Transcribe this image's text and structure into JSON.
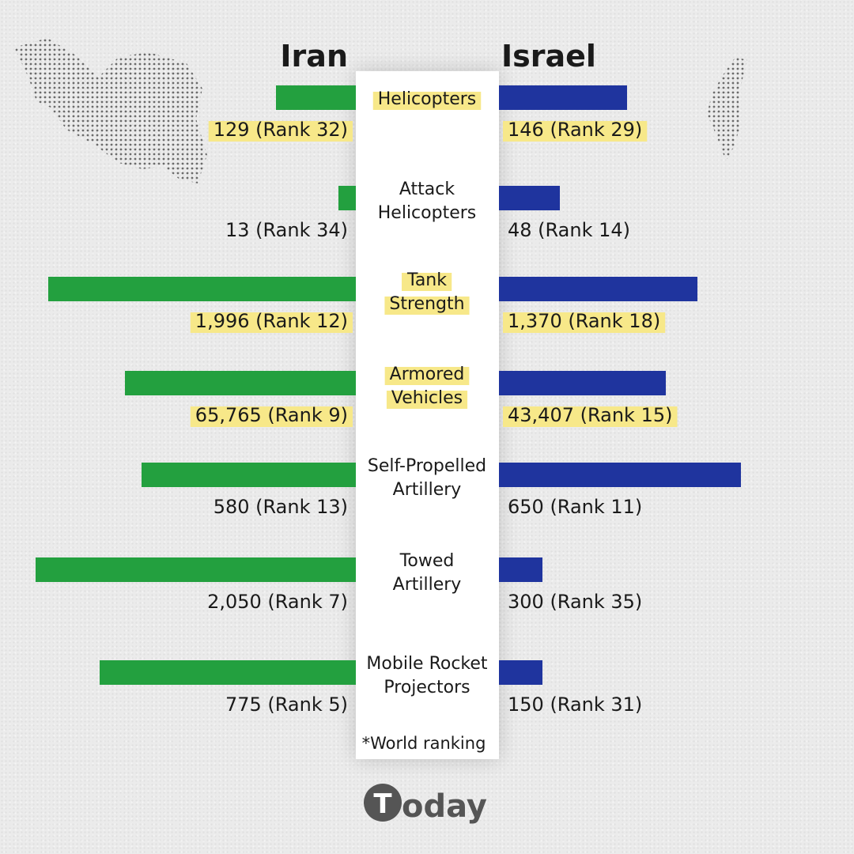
{
  "chart_data": {
    "type": "bar",
    "orientation": "diverging-horizontal",
    "left_label": "Iran",
    "right_label": "Israel",
    "footnote": "*World ranking",
    "categories": [
      {
        "label": [
          "Helicopters"
        ],
        "highlight": true
      },
      {
        "label": [
          "Attack",
          "Helicopters"
        ],
        "highlight": false
      },
      {
        "label": [
          "Tank",
          "Strength"
        ],
        "highlight": true
      },
      {
        "label": [
          "Armored",
          "Vehicles"
        ],
        "highlight": true
      },
      {
        "label": [
          "Self-Propelled",
          "Artillery"
        ],
        "highlight": false
      },
      {
        "label": [
          "Towed",
          "Artillery"
        ],
        "highlight": false
      },
      {
        "label": [
          "Mobile Rocket",
          "Projectors"
        ],
        "highlight": false
      }
    ],
    "series": [
      {
        "name": "Iran",
        "color": "#23a03f",
        "values": [
          129,
          13,
          1996,
          65765,
          580,
          2050,
          775
        ],
        "labels": [
          "129 (Rank 32)",
          "13 (Rank 34)",
          "1,996 (Rank 12)",
          "65,765 (Rank 9)",
          "580 (Rank 13)",
          "2,050 (Rank 7)",
          "775 (Rank 5)"
        ],
        "ranks": [
          32,
          34,
          12,
          9,
          13,
          7,
          5
        ]
      },
      {
        "name": "Israel",
        "color": "#1f349e",
        "values": [
          146,
          48,
          1370,
          43407,
          650,
          300,
          150
        ],
        "labels": [
          "146 (Rank 29)",
          "48 (Rank 14)",
          "1,370 (Rank 18)",
          "43,407 (Rank 15)",
          "650 (Rank 11)",
          "300 (Rank 35)",
          "150 (Rank 31)"
        ],
        "ranks": [
          29,
          14,
          18,
          15,
          11,
          35,
          31
        ]
      }
    ],
    "bar_scale_note": "bars scaled per category (not a shared axis)",
    "bar_fraction": {
      "Iran": [
        0.25,
        0.055,
        0.96,
        0.72,
        0.67,
        1.0,
        0.8
      ],
      "Israel": [
        0.53,
        0.25,
        0.82,
        0.69,
        1.0,
        0.18,
        0.18
      ]
    }
  },
  "colors": {
    "highlight": "#f7e889",
    "background": "#ebebeb"
  },
  "brand": {
    "logo_letter": "T",
    "logo_text": "oday"
  }
}
